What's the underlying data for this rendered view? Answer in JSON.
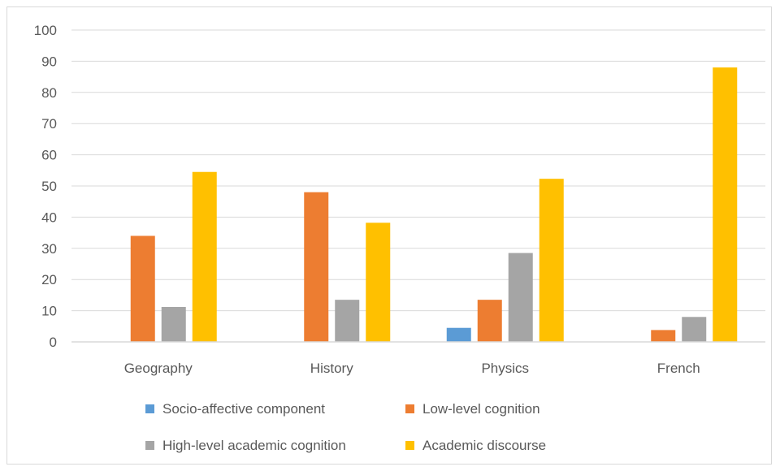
{
  "chart_data": {
    "type": "bar",
    "title": "",
    "xlabel": "",
    "ylabel": "",
    "ylim": [
      0,
      100
    ],
    "yticks": [
      0,
      10,
      20,
      30,
      40,
      50,
      60,
      70,
      80,
      90,
      100
    ],
    "grid": true,
    "legend_position": "bottom",
    "categories": [
      "Geography",
      "History",
      "Physics",
      "French"
    ],
    "series": [
      {
        "name": "Socio-affective component",
        "color": "#5b9bd5",
        "values": [
          0,
          0,
          4.5,
          0
        ]
      },
      {
        "name": "Low-level cognition",
        "color": "#ed7d31",
        "values": [
          34,
          48,
          13.5,
          3.8
        ]
      },
      {
        "name": "High-level academic cognition",
        "color": "#a5a5a5",
        "values": [
          11.2,
          13.5,
          28.5,
          8
        ]
      },
      {
        "name": "Academic discourse",
        "color": "#ffc000",
        "values": [
          54.5,
          38.2,
          52.3,
          88
        ]
      }
    ]
  }
}
